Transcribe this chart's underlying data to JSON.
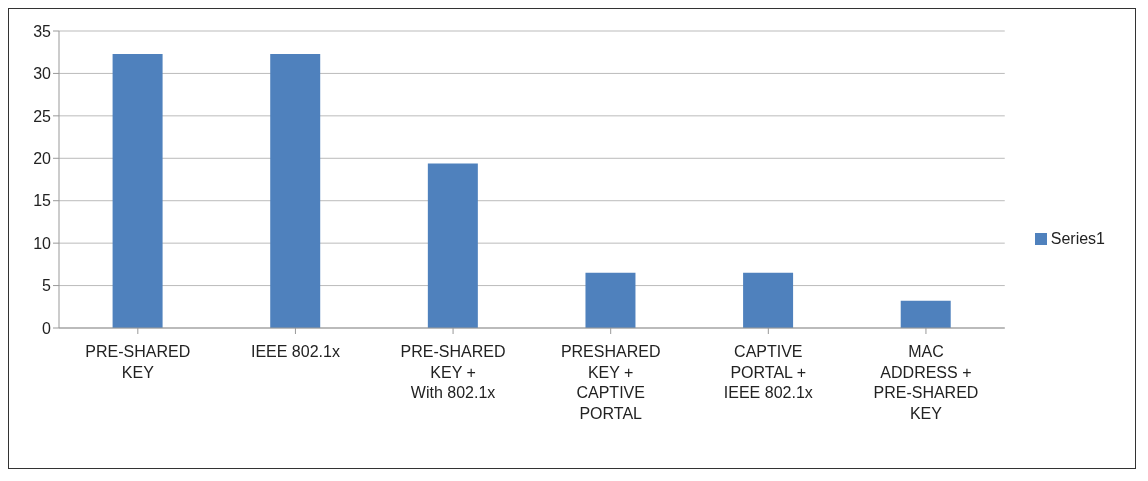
{
  "chart_data": {
    "type": "bar",
    "categories": [
      "PRE-SHARED\nKEY",
      "IEEE 802.1x",
      "PRE-SHARED\nKEY +\nWith 802.1x",
      "PRESHARED\nKEY +\nCAPTIVE\nPORTAL",
      "CAPTIVE\nPORTAL +\nIEEE 802.1x",
      "MAC\nADDRESS +\nPRE-SHARED\nKEY"
    ],
    "series": [
      {
        "name": "Series1",
        "color": "#4f81bd",
        "values": [
          32.3,
          32.3,
          19.4,
          6.5,
          6.5,
          3.2
        ]
      }
    ],
    "ylim": [
      0,
      35
    ],
    "yticks": [
      0,
      5,
      10,
      15,
      20,
      25,
      30,
      35
    ],
    "grid": "y",
    "legend": "right"
  }
}
